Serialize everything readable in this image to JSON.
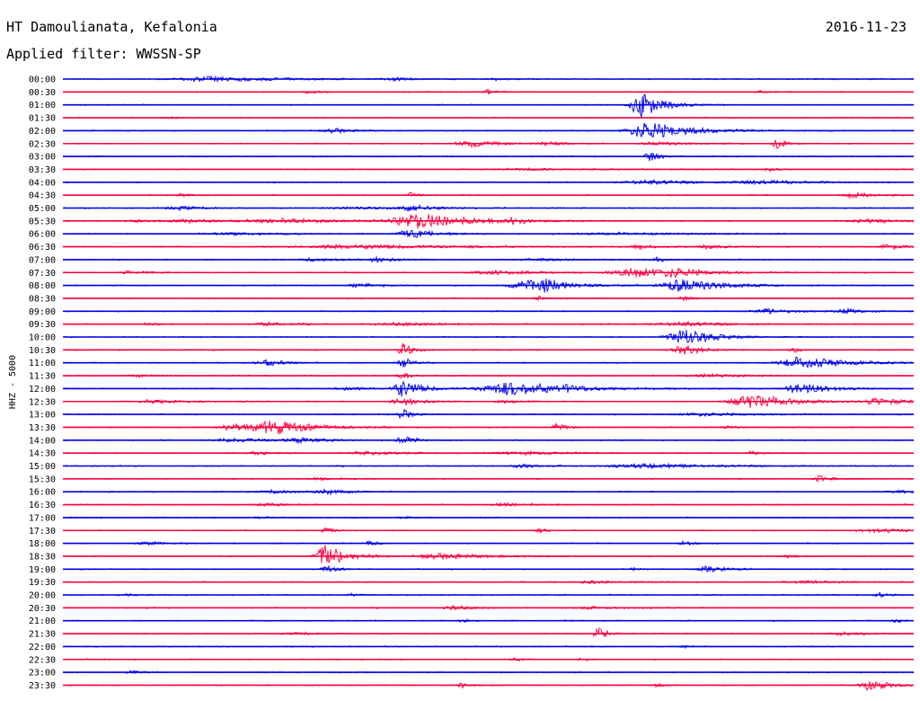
{
  "header": {
    "station": "HT Damoulianata, Kefalonia",
    "date": "2016-11-23",
    "filter": "Applied filter: WWSSN-SP"
  },
  "chart_data": {
    "type": "line",
    "ylabel": "HHZ - 5000",
    "colors": {
      "odd_hour": "#0000e6",
      "half_hour": "#ff0040"
    },
    "rows": [
      {
        "label": "00:00",
        "events": [
          [
            0.18,
            0.45,
            0.07
          ],
          [
            0.39,
            0.25,
            0.02
          ],
          [
            0.51,
            0.15,
            0.02
          ]
        ]
      },
      {
        "label": "00:30",
        "events": [
          [
            0.29,
            0.3,
            0.01
          ],
          [
            0.5,
            0.4,
            0.01
          ],
          [
            0.82,
            0.15,
            0.01
          ]
        ]
      },
      {
        "label": "01:00",
        "events": [
          [
            0.68,
            2.5,
            0.02
          ]
        ]
      },
      {
        "label": "01:30",
        "events": [
          [
            0.12,
            0.15,
            0.01
          ]
        ]
      },
      {
        "label": "02:00",
        "events": [
          [
            0.32,
            0.4,
            0.02
          ],
          [
            0.69,
            1.6,
            0.04
          ]
        ]
      },
      {
        "label": "02:30",
        "events": [
          [
            0.48,
            0.6,
            0.03
          ],
          [
            0.57,
            0.3,
            0.02
          ],
          [
            0.7,
            0.35,
            0.03
          ],
          [
            0.84,
            0.9,
            0.01
          ]
        ]
      },
      {
        "label": "03:00",
        "events": [
          [
            0.69,
            0.9,
            0.01
          ]
        ]
      },
      {
        "label": "03:30",
        "events": [
          [
            0.56,
            0.15,
            0.08
          ],
          [
            0.83,
            0.3,
            0.01
          ]
        ]
      },
      {
        "label": "04:00",
        "events": [
          [
            0.69,
            0.4,
            0.05
          ],
          [
            0.82,
            0.35,
            0.05
          ]
        ]
      },
      {
        "label": "04:30",
        "events": [
          [
            0.14,
            0.2,
            0.02
          ],
          [
            0.41,
            0.45,
            0.01
          ],
          [
            0.93,
            0.5,
            0.02
          ]
        ]
      },
      {
        "label": "05:00",
        "events": [
          [
            0.14,
            0.3,
            0.03
          ],
          [
            0.41,
            0.6,
            0.02
          ],
          [
            0.35,
            0.2,
            0.06
          ]
        ]
      },
      {
        "label": "05:30",
        "events": [
          [
            0.09,
            0.3,
            0.02
          ],
          [
            0.15,
            0.25,
            0.04
          ],
          [
            0.26,
            0.4,
            0.07
          ],
          [
            0.42,
            1.4,
            0.05
          ],
          [
            0.53,
            0.7,
            0.01
          ],
          [
            0.95,
            0.3,
            0.04
          ]
        ]
      },
      {
        "label": "06:00",
        "events": [
          [
            0.41,
            0.7,
            0.03
          ],
          [
            0.2,
            0.2,
            0.05
          ],
          [
            0.65,
            0.2,
            0.08
          ]
        ]
      },
      {
        "label": "06:30",
        "events": [
          [
            0.35,
            0.35,
            0.12
          ],
          [
            0.68,
            0.3,
            0.02
          ],
          [
            0.76,
            0.3,
            0.02
          ],
          [
            0.97,
            0.45,
            0.02
          ]
        ]
      },
      {
        "label": "07:00",
        "events": [
          [
            0.3,
            0.3,
            0.03
          ],
          [
            0.37,
            0.45,
            0.02
          ],
          [
            0.7,
            0.45,
            0.01
          ],
          [
            0.56,
            0.2,
            0.05
          ]
        ]
      },
      {
        "label": "07:30",
        "events": [
          [
            0.08,
            0.3,
            0.02
          ],
          [
            0.51,
            0.35,
            0.05
          ],
          [
            0.68,
            0.9,
            0.05
          ],
          [
            0.72,
            0.5,
            0.02
          ]
        ]
      },
      {
        "label": "08:00",
        "events": [
          [
            0.35,
            0.35,
            0.02
          ],
          [
            0.55,
            0.9,
            0.04
          ],
          [
            0.57,
            1.1,
            0.01
          ],
          [
            0.73,
            1.2,
            0.04
          ]
        ]
      },
      {
        "label": "08:30",
        "events": [
          [
            0.56,
            0.35,
            0.01
          ],
          [
            0.73,
            0.35,
            0.01
          ]
        ]
      },
      {
        "label": "09:00",
        "events": [
          [
            0.83,
            0.4,
            0.03
          ],
          [
            0.92,
            0.45,
            0.02
          ]
        ]
      },
      {
        "label": "09:30",
        "events": [
          [
            0.1,
            0.35,
            0.01
          ],
          [
            0.24,
            0.3,
            0.03
          ],
          [
            0.4,
            0.25,
            0.06
          ],
          [
            0.73,
            0.4,
            0.05
          ]
        ]
      },
      {
        "label": "10:00",
        "events": [
          [
            0.73,
            1.5,
            0.03
          ]
        ]
      },
      {
        "label": "10:30",
        "events": [
          [
            0.4,
            1.2,
            0.01
          ],
          [
            0.73,
            0.9,
            0.02
          ],
          [
            0.86,
            0.45,
            0.01
          ]
        ]
      },
      {
        "label": "11:00",
        "events": [
          [
            0.24,
            0.6,
            0.02
          ],
          [
            0.4,
            0.9,
            0.01
          ],
          [
            0.87,
            1.2,
            0.04
          ]
        ]
      },
      {
        "label": "11:30",
        "events": [
          [
            0.09,
            0.2,
            0.02
          ],
          [
            0.4,
            0.55,
            0.01
          ],
          [
            0.76,
            0.3,
            0.04
          ]
        ]
      },
      {
        "label": "12:00",
        "events": [
          [
            0.33,
            0.35,
            0.02
          ],
          [
            0.4,
            1.5,
            0.02
          ],
          [
            0.53,
            1.2,
            0.06
          ],
          [
            0.59,
            0.35,
            0.01
          ],
          [
            0.87,
            1.0,
            0.03
          ]
        ]
      },
      {
        "label": "12:30",
        "events": [
          [
            0.11,
            0.3,
            0.04
          ],
          [
            0.4,
            0.8,
            0.02
          ],
          [
            0.52,
            0.3,
            0.02
          ],
          [
            0.81,
            1.3,
            0.04
          ],
          [
            0.96,
            0.6,
            0.03
          ]
        ]
      },
      {
        "label": "13:00",
        "events": [
          [
            0.4,
            0.9,
            0.01
          ],
          [
            0.75,
            0.3,
            0.05
          ]
        ]
      },
      {
        "label": "13:30",
        "events": [
          [
            0.2,
            0.6,
            0.03
          ],
          [
            0.25,
            1.2,
            0.04
          ],
          [
            0.58,
            0.7,
            0.01
          ],
          [
            0.78,
            0.35,
            0.01
          ]
        ]
      },
      {
        "label": "14:00",
        "events": [
          [
            0.2,
            0.35,
            0.04
          ],
          [
            0.28,
            0.4,
            0.03
          ],
          [
            0.4,
            1.2,
            0.01
          ]
        ]
      },
      {
        "label": "14:30",
        "events": [
          [
            0.23,
            0.3,
            0.02
          ],
          [
            0.36,
            0.3,
            0.04
          ],
          [
            0.54,
            0.25,
            0.06
          ],
          [
            0.81,
            0.3,
            0.01
          ]
        ]
      },
      {
        "label": "15:00",
        "events": [
          [
            0.54,
            0.35,
            0.02
          ],
          [
            0.69,
            0.35,
            0.08
          ]
        ]
      },
      {
        "label": "15:30",
        "events": [
          [
            0.3,
            0.2,
            0.03
          ],
          [
            0.89,
            0.65,
            0.01
          ]
        ]
      },
      {
        "label": "16:00",
        "events": [
          [
            0.25,
            0.3,
            0.03
          ],
          [
            0.31,
            0.45,
            0.02
          ],
          [
            0.98,
            0.3,
            0.02
          ]
        ]
      },
      {
        "label": "16:30",
        "events": [
          [
            0.24,
            0.3,
            0.02
          ],
          [
            0.52,
            0.3,
            0.03
          ]
        ]
      },
      {
        "label": "17:00",
        "events": [
          [
            0.23,
            0.15,
            0.01
          ],
          [
            0.4,
            0.25,
            0.01
          ]
        ]
      },
      {
        "label": "17:30",
        "events": [
          [
            0.31,
            0.45,
            0.01
          ],
          [
            0.56,
            0.35,
            0.01
          ],
          [
            0.96,
            0.35,
            0.04
          ]
        ]
      },
      {
        "label": "18:00",
        "events": [
          [
            0.1,
            0.3,
            0.02
          ],
          [
            0.36,
            0.35,
            0.01
          ],
          [
            0.73,
            0.35,
            0.01
          ]
        ]
      },
      {
        "label": "18:30",
        "events": [
          [
            0.31,
            2.2,
            0.02
          ],
          [
            0.45,
            0.5,
            0.05
          ],
          [
            0.85,
            0.3,
            0.01
          ]
        ]
      },
      {
        "label": "19:00",
        "events": [
          [
            0.31,
            0.7,
            0.01
          ],
          [
            0.76,
            0.6,
            0.02
          ],
          [
            0.67,
            0.2,
            0.01
          ]
        ]
      },
      {
        "label": "19:30",
        "events": [
          [
            0.62,
            0.25,
            0.03
          ],
          [
            0.87,
            0.2,
            0.04
          ]
        ]
      },
      {
        "label": "20:00",
        "events": [
          [
            0.07,
            0.25,
            0.01
          ],
          [
            0.34,
            0.25,
            0.01
          ],
          [
            0.96,
            0.45,
            0.01
          ]
        ]
      },
      {
        "label": "20:30",
        "events": [
          [
            0.46,
            0.4,
            0.02
          ],
          [
            0.62,
            0.2,
            0.04
          ]
        ]
      },
      {
        "label": "21:00",
        "events": [
          [
            0.47,
            0.25,
            0.01
          ],
          [
            0.98,
            0.3,
            0.01
          ]
        ]
      },
      {
        "label": "21:30",
        "events": [
          [
            0.28,
            0.2,
            0.03
          ],
          [
            0.63,
            1.0,
            0.01
          ],
          [
            0.92,
            0.3,
            0.03
          ]
        ]
      },
      {
        "label": "22:00",
        "events": [
          [
            0.73,
            0.15,
            0.01
          ]
        ]
      },
      {
        "label": "22:30",
        "events": [
          [
            0.53,
            0.25,
            0.01
          ],
          [
            0.61,
            0.25,
            0.01
          ]
        ]
      },
      {
        "label": "23:00",
        "events": [
          [
            0.08,
            0.3,
            0.01
          ]
        ]
      },
      {
        "label": "23:30",
        "events": [
          [
            0.47,
            0.45,
            0.01
          ],
          [
            0.7,
            0.3,
            0.01
          ],
          [
            0.95,
            1.0,
            0.02
          ]
        ]
      }
    ]
  }
}
